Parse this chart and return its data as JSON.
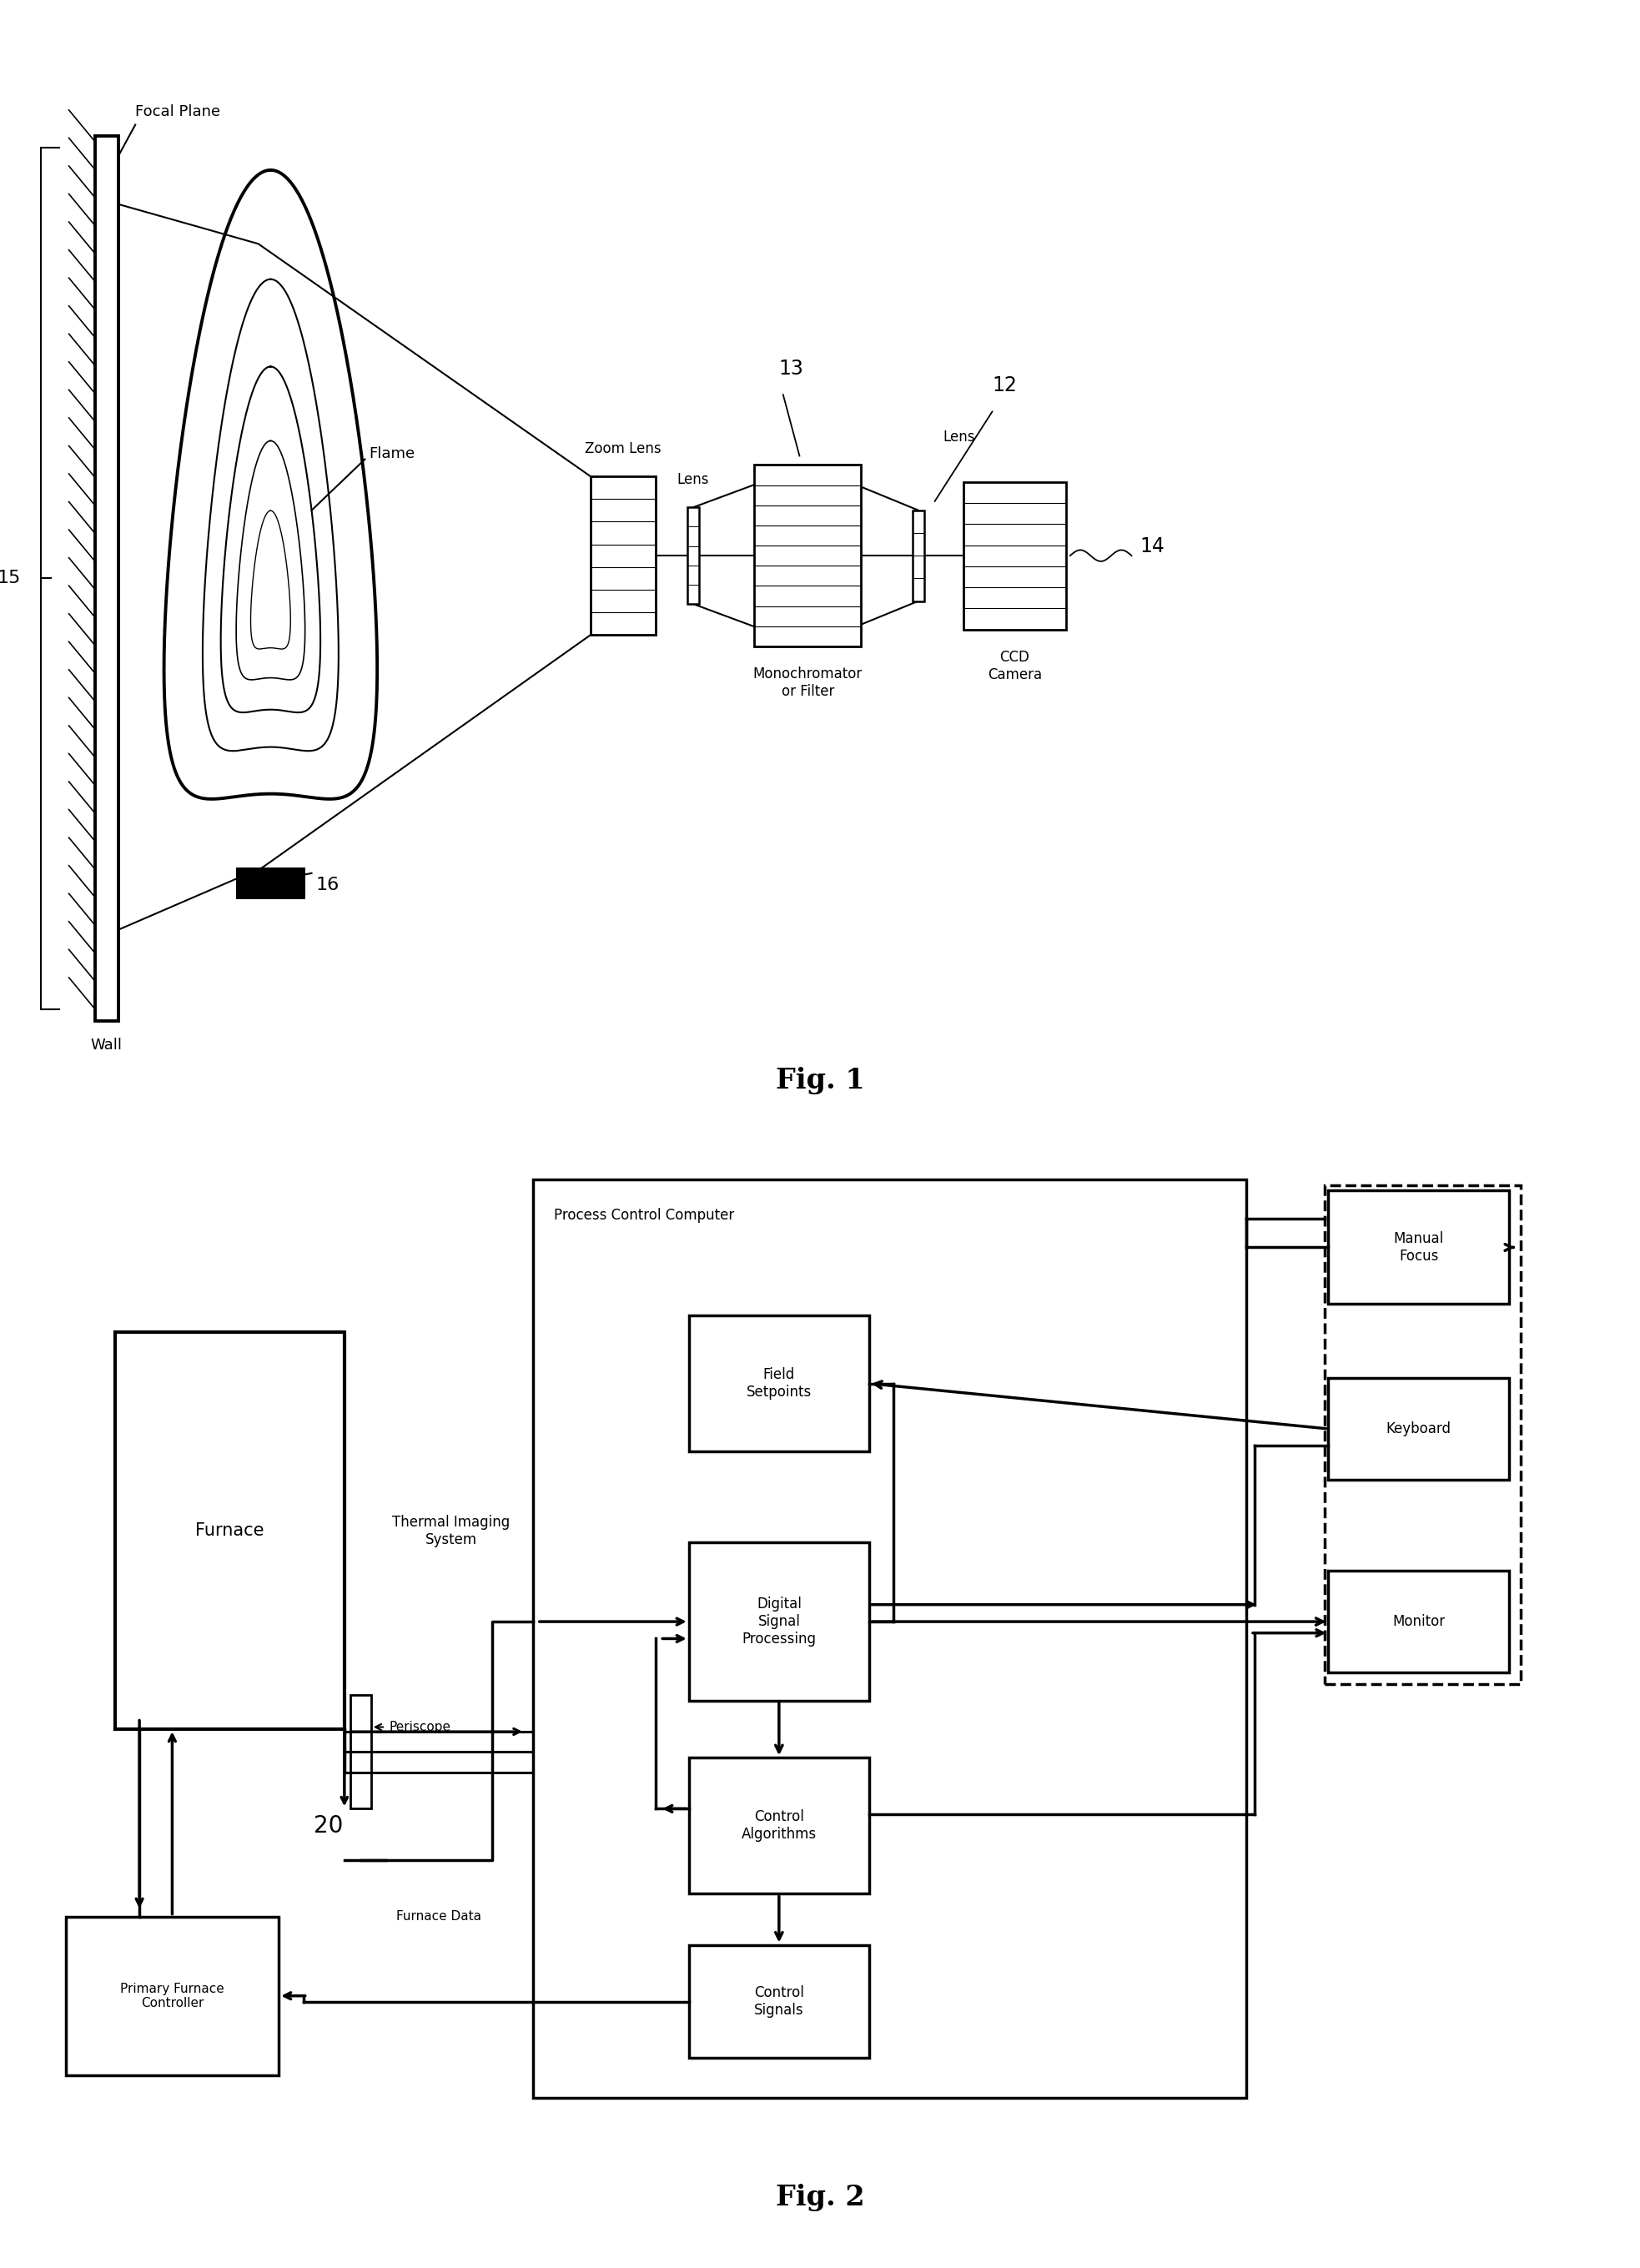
{
  "bg_color": "#ffffff",
  "fig1": {
    "title": "Fig. 1",
    "focal_plane_label": "Focal Plane",
    "wall_label": "Wall",
    "flame_label": "Flame",
    "ref16_label": "16",
    "ref15_label": "15",
    "zoom_lens_label": "Zoom Lens",
    "lens1_label": "Lens",
    "lens2_label": "Lens",
    "monochromator_label": "Monochromator\nor Filter",
    "ccd_label": "CCD\nCamera",
    "ref13_label": "13",
    "ref12_label": "12",
    "ref14_label": "14"
  },
  "fig2": {
    "title": "Fig. 2",
    "furnace_label": "Furnace",
    "thermal_label": "Thermal Imaging\nSystem",
    "periscope_label": "Periscope",
    "ref20_label": "20",
    "furnace_data_label": "Furnace Data",
    "primary_label": "Primary Furnace\nController",
    "pcc_label": "Process Control Computer",
    "field_label": "Field\nSetpoints",
    "dsp_label": "Digital\nSignal\nProcessing",
    "control_alg_label": "Control\nAlgorithms",
    "control_sig_label": "Control\nSignals",
    "keyboard_label": "Keyboard",
    "monitor_label": "Monitor",
    "manual_focus_label": "Manual\nFocus"
  }
}
